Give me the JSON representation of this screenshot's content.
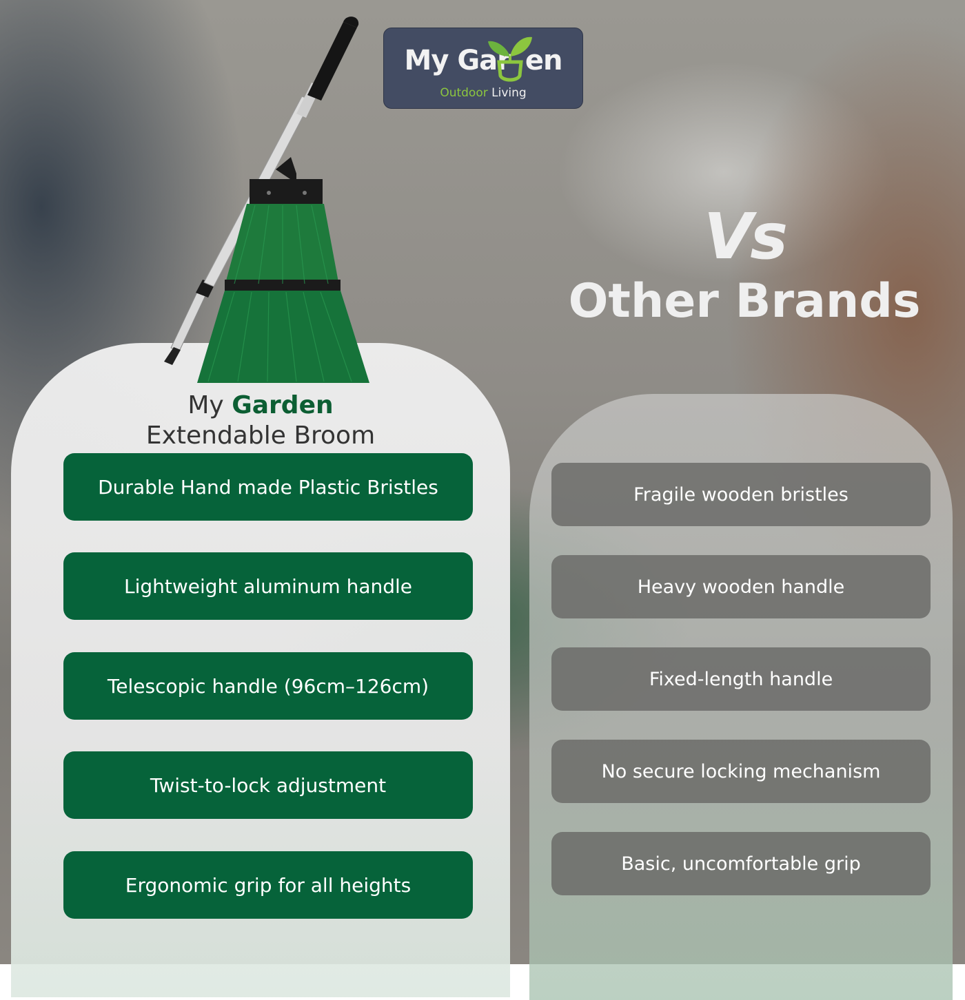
{
  "logo": {
    "brand_left": "My Gar",
    "brand_right": "en",
    "sub_a": "Outdoor",
    "sub_b": "Living"
  },
  "comparison": {
    "vs": "Vs",
    "other_brands": "Other Brands"
  },
  "product": {
    "title_my": "My",
    "title_garden": "Garden",
    "title_line2": "Extendable Broom"
  },
  "my_garden_features": [
    "Durable Hand made Plastic Bristles",
    "Lightweight aluminum handle",
    "Telescopic handle (96cm–126cm)",
    "Twist-to-lock adjustment",
    "Ergonomic grip for all heights"
  ],
  "other_brand_features": [
    "Fragile wooden bristles",
    "Heavy wooden handle",
    "Fixed-length handle",
    "No secure locking mechanism",
    "Basic, uncomfortable grip"
  ],
  "colors": {
    "brand_green": "#06633a",
    "logo_bg": "#434c63",
    "sprout_green": "#8cc63f",
    "other_gray": "#696967"
  }
}
